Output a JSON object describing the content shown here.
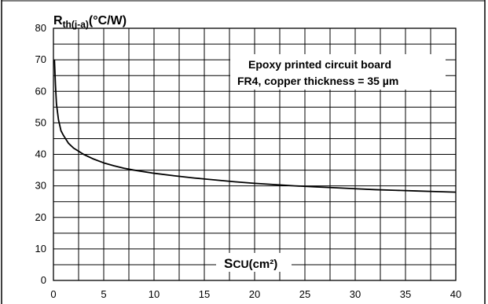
{
  "chart_data": {
    "type": "line",
    "ylabel": {
      "main": "R",
      "sub": "th(j-a)",
      "unit": "(°C/W)"
    },
    "xlabel": {
      "main": "S",
      "sub": "CU",
      "unit": "(cm²)"
    },
    "xlim": [
      0,
      40
    ],
    "ylim": [
      0,
      80
    ],
    "x_major_ticks": [
      0,
      5,
      10,
      15,
      20,
      25,
      30,
      35,
      40
    ],
    "y_major_ticks": [
      0,
      10,
      20,
      30,
      40,
      50,
      60,
      70,
      80
    ],
    "x_grid_step": 2.5,
    "y_grid_step": 5,
    "grid": true,
    "annotation": [
      "Epoxy printed circuit board",
      "FR4, copper thickness = 35 µm"
    ],
    "series": [
      {
        "x": [
          0.1,
          0.2,
          0.3,
          0.5,
          0.75,
          1,
          1.5,
          2,
          2.5,
          3,
          4,
          5,
          6,
          7,
          8,
          10,
          12,
          14,
          16,
          18,
          20,
          22,
          24,
          26,
          28,
          30,
          32,
          34,
          36,
          38,
          40
        ],
        "values": [
          70,
          62,
          56,
          51,
          47.5,
          46,
          43.5,
          42,
          41,
          40,
          38.5,
          37.3,
          36.4,
          35.6,
          35,
          34,
          33.2,
          32.5,
          31.9,
          31.3,
          30.8,
          30.4,
          30,
          29.7,
          29.4,
          29.1,
          28.8,
          28.6,
          28.4,
          28.2,
          28
        ]
      }
    ],
    "colors": {
      "curve": "#000000",
      "grid": "#000000",
      "background": "#ffffff"
    }
  }
}
